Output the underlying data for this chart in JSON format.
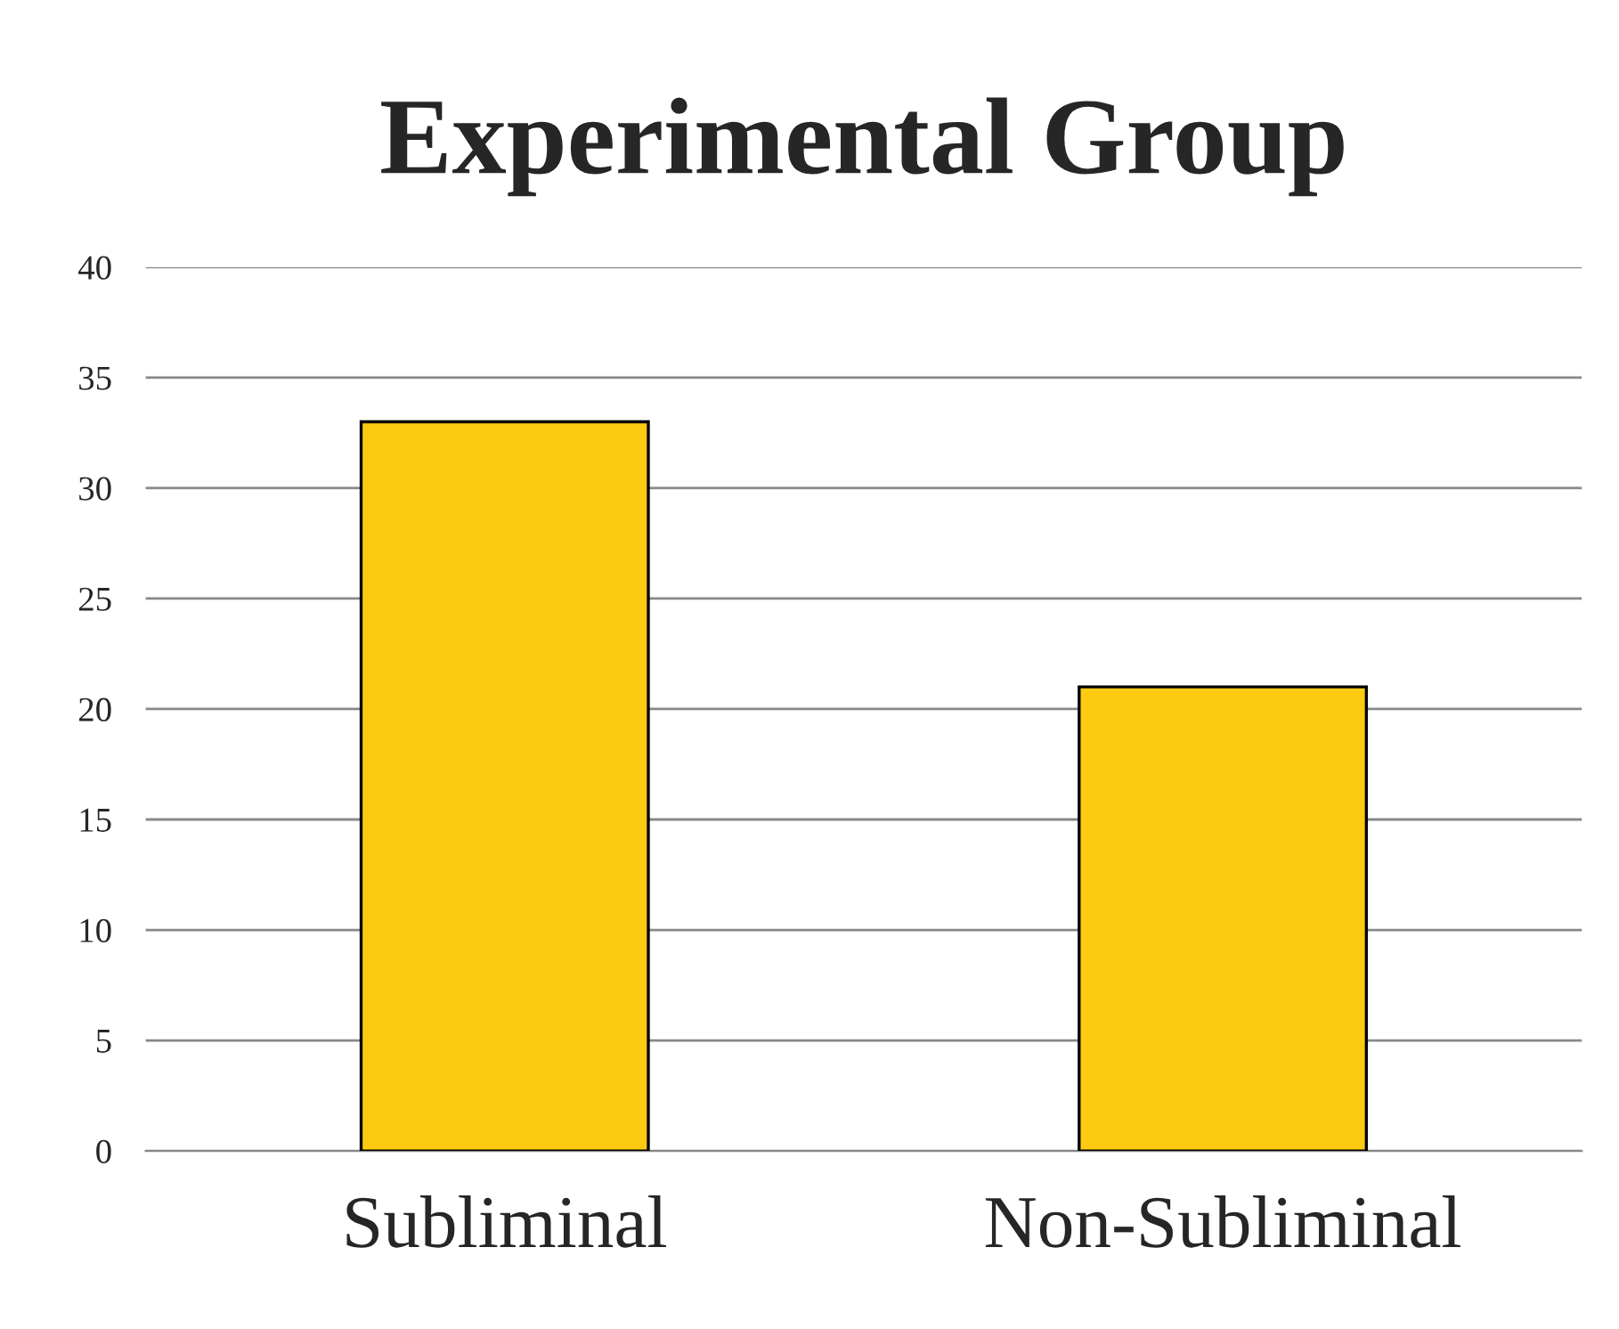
{
  "chart_data": {
    "type": "bar",
    "title": "Experimental Group",
    "categories": [
      "Subliminal",
      "Non-Subliminal"
    ],
    "values": [
      33,
      21
    ],
    "color": "#fdca12",
    "ylim": [
      0,
      40
    ],
    "yticks": [
      0,
      5,
      10,
      15,
      20,
      25,
      30,
      35,
      40
    ],
    "grid": "y",
    "legend": false
  }
}
